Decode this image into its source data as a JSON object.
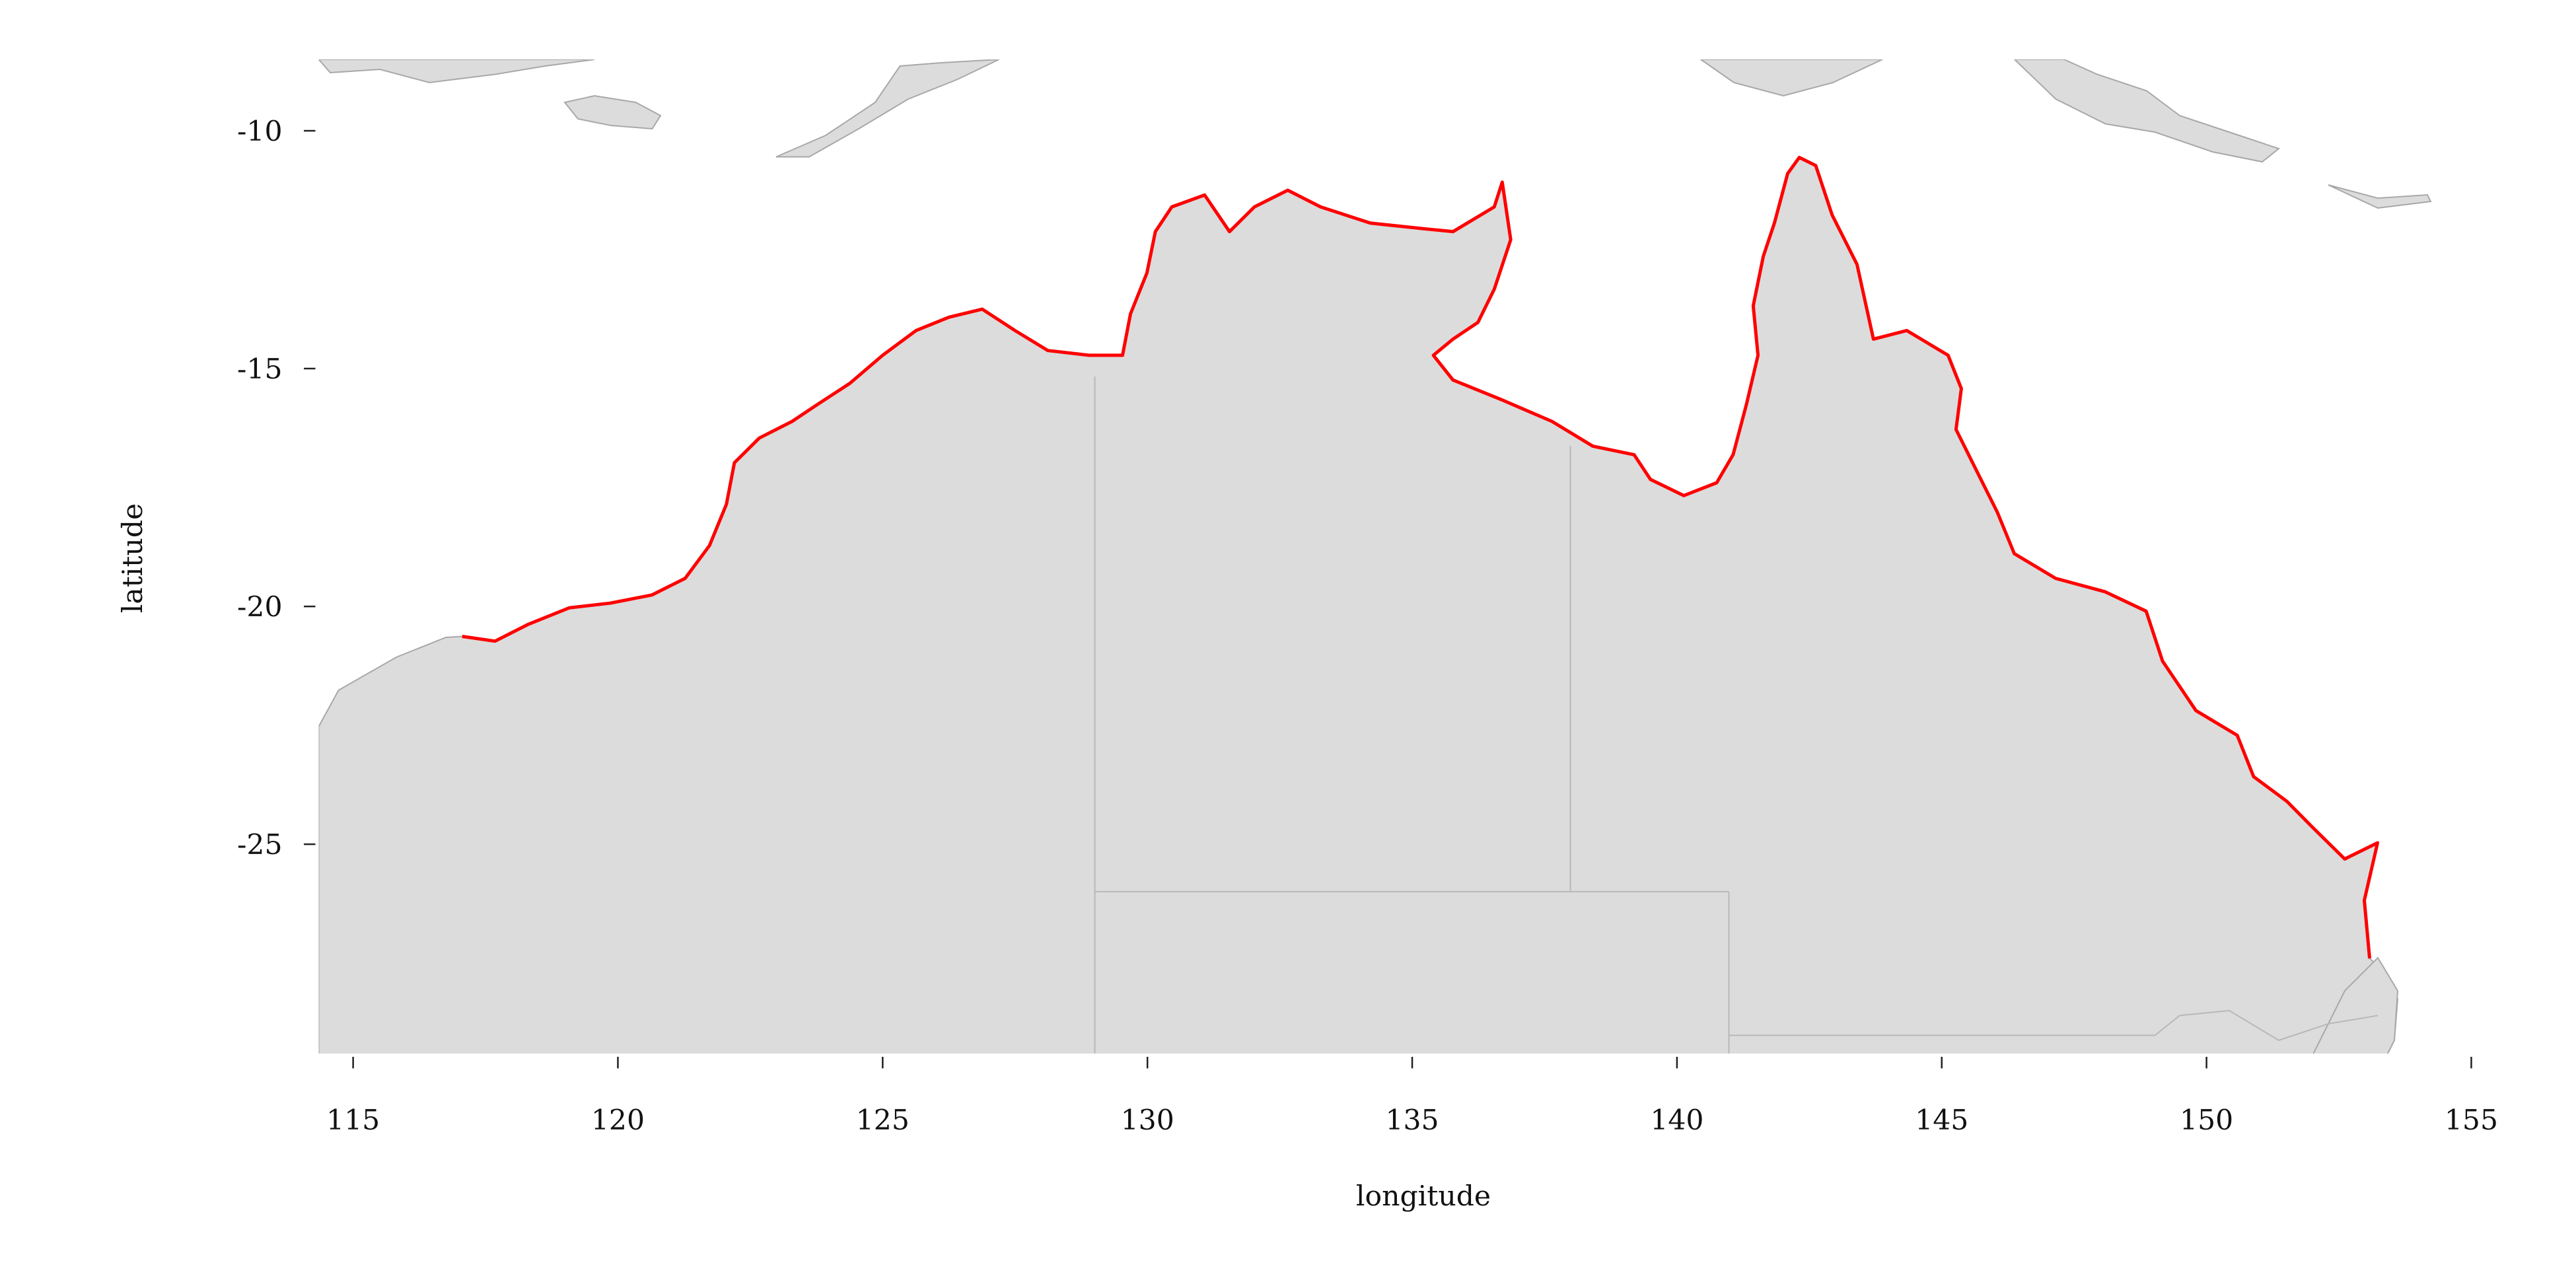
{
  "chart_data": {
    "type": "map",
    "xlabel": "longitude",
    "ylabel": "latitude",
    "xlim": [
      114.35,
      155.2
    ],
    "ylim": [
      -29.4,
      -8.5
    ],
    "xticks": [
      115,
      120,
      125,
      130,
      135,
      140,
      145,
      150,
      155
    ],
    "yticks": [
      -10,
      -15,
      -20,
      -25
    ],
    "series": [
      {
        "color": "#ff0000",
        "x": [
          117.06,
          117.68,
          118.3,
          119.08,
          119.86,
          120.64,
          121.27,
          121.73,
          122.05,
          122.2,
          122.67,
          123.29,
          123.76,
          124.38,
          125.0,
          125.63,
          126.25,
          126.88,
          127.5,
          128.12,
          128.9,
          129.53,
          129.68,
          129.99,
          130.15,
          130.46,
          131.08,
          131.55,
          132.02,
          132.65,
          133.27,
          134.21,
          135.14,
          135.77,
          136.55,
          136.7,
          136.86,
          136.55,
          136.24,
          135.77,
          135.4,
          135.77,
          136.7,
          137.64,
          138.41,
          139.19,
          139.5,
          140.13,
          140.75,
          141.06,
          141.31,
          141.53,
          141.44,
          141.63,
          141.84,
          142.09,
          142.31,
          142.62,
          142.93,
          143.4,
          143.71,
          144.34,
          145.12,
          145.37,
          145.27,
          145.74,
          146.05,
          146.37,
          147.15,
          148.08,
          148.86,
          149.17,
          149.8,
          150.58,
          150.89,
          151.52,
          151.98,
          152.61,
          153.23,
          152.98,
          153.08
        ],
        "y": [
          -20.63,
          -20.73,
          -20.38,
          -20.03,
          -19.93,
          -19.76,
          -19.41,
          -18.72,
          -17.85,
          -16.98,
          -16.46,
          -16.11,
          -15.76,
          -15.31,
          -14.72,
          -14.2,
          -13.92,
          -13.75,
          -14.2,
          -14.62,
          -14.72,
          -14.72,
          -13.85,
          -12.99,
          -12.12,
          -11.6,
          -11.35,
          -12.12,
          -11.6,
          -11.25,
          -11.6,
          -11.94,
          -12.05,
          -12.12,
          -11.6,
          -11.08,
          -12.29,
          -13.33,
          -14.03,
          -14.38,
          -14.72,
          -15.24,
          -15.66,
          -16.11,
          -16.63,
          -16.81,
          -17.33,
          -17.67,
          -17.4,
          -16.81,
          -15.76,
          -14.72,
          -13.68,
          -12.64,
          -11.94,
          -10.9,
          -10.56,
          -10.73,
          -11.77,
          -12.81,
          -14.38,
          -14.2,
          -14.72,
          -15.42,
          -16.28,
          -17.33,
          -18.02,
          -18.89,
          -19.41,
          -19.69,
          -20.1,
          -21.15,
          -22.19,
          -22.71,
          -23.58,
          -24.1,
          -24.62,
          -25.31,
          -24.97,
          -26.18,
          -27.4
        ]
      }
    ]
  }
}
